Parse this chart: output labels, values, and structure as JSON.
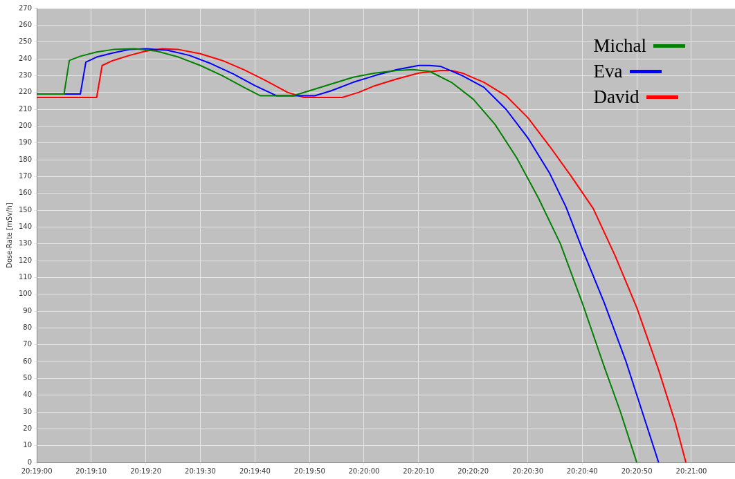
{
  "chart_data": {
    "type": "line",
    "ylabel": "Dose-Rate [mSv/h]",
    "xlim": [
      20.31667,
      20.35222
    ],
    "ylim": [
      0,
      270
    ],
    "xticks": [
      {
        "value": 20.31667,
        "label": "20:19:00"
      },
      {
        "value": 20.31944,
        "label": "20:19:10"
      },
      {
        "value": 20.32222,
        "label": "20:19:20"
      },
      {
        "value": 20.325,
        "label": "20:19:30"
      },
      {
        "value": 20.32778,
        "label": "20:19:40"
      },
      {
        "value": 20.33056,
        "label": "20:19:50"
      },
      {
        "value": 20.33333,
        "label": "20:20:00"
      },
      {
        "value": 20.33611,
        "label": "20:20:10"
      },
      {
        "value": 20.33889,
        "label": "20:20:20"
      },
      {
        "value": 20.34167,
        "label": "20:20:30"
      },
      {
        "value": 20.34444,
        "label": "20:20:40"
      },
      {
        "value": 20.34722,
        "label": "20:20:50"
      },
      {
        "value": 20.35,
        "label": "20:21:00"
      }
    ],
    "yticks": [
      0,
      10,
      20,
      30,
      40,
      50,
      60,
      70,
      80,
      90,
      100,
      110,
      120,
      130,
      140,
      150,
      160,
      170,
      180,
      190,
      200,
      210,
      220,
      230,
      240,
      250,
      260,
      270
    ],
    "grid": true,
    "legend": "top right",
    "marker": "none",
    "line_style": "solid",
    "series": [
      {
        "name": "Michal",
        "color": "#008000",
        "x": [
          20.31667,
          20.31806,
          20.31833,
          20.31889,
          20.31972,
          20.32056,
          20.32167,
          20.32278,
          20.32389,
          20.325,
          20.32611,
          20.32722,
          20.32806,
          20.32972,
          20.33056,
          20.33167,
          20.33278,
          20.33389,
          20.335,
          20.33583,
          20.33667,
          20.33778,
          20.33889,
          20.34,
          20.34111,
          20.34222,
          20.34333,
          20.34444,
          20.34556,
          20.34639,
          20.34694,
          20.34722
        ],
        "values": [
          219,
          219,
          239,
          241.5,
          244,
          245.5,
          246,
          244.5,
          241,
          236,
          230,
          223,
          218,
          218,
          221,
          225,
          229,
          231.5,
          233,
          233.5,
          232.5,
          226,
          216,
          201,
          181,
          157,
          130,
          95,
          57,
          30,
          10,
          0
        ]
      },
      {
        "name": "Eva",
        "color": "#0000ff",
        "x": [
          20.31667,
          20.31889,
          20.31917,
          20.31972,
          20.32056,
          20.32139,
          20.32222,
          20.32333,
          20.32444,
          20.32556,
          20.32667,
          20.32778,
          20.32889,
          20.33083,
          20.33167,
          20.33278,
          20.33389,
          20.335,
          20.33611,
          20.33667,
          20.33722,
          20.33833,
          20.33944,
          20.34056,
          20.34167,
          20.34278,
          20.34361,
          20.34444,
          20.34556,
          20.34667,
          20.3475,
          20.34833
        ],
        "values": [
          219,
          219,
          238,
          241,
          243.5,
          245.5,
          246,
          245,
          242,
          237,
          231,
          224,
          218,
          218,
          221,
          226,
          230,
          233.5,
          236,
          236,
          235.5,
          230,
          223,
          210,
          193,
          172,
          152,
          127,
          95,
          60,
          30,
          0
        ]
      },
      {
        "name": "David",
        "color": "#ff0000",
        "x": [
          20.31667,
          20.31972,
          20.32,
          20.32056,
          20.32139,
          20.32222,
          20.32306,
          20.32389,
          20.325,
          20.32611,
          20.32722,
          20.32833,
          20.32944,
          20.33028,
          20.33222,
          20.33306,
          20.33389,
          20.335,
          20.33611,
          20.33722,
          20.33778,
          20.33833,
          20.33944,
          20.34056,
          20.34167,
          20.34278,
          20.34389,
          20.345,
          20.34611,
          20.34722,
          20.34833,
          20.34917,
          20.34972
        ],
        "values": [
          217,
          217,
          236,
          239,
          242,
          244.5,
          246,
          245.5,
          243,
          239,
          233.5,
          227,
          220,
          217,
          217,
          220,
          224,
          228,
          231.5,
          233,
          233,
          231.5,
          226,
          218,
          205,
          188,
          170,
          151,
          123,
          92,
          55,
          24,
          0
        ]
      }
    ]
  }
}
